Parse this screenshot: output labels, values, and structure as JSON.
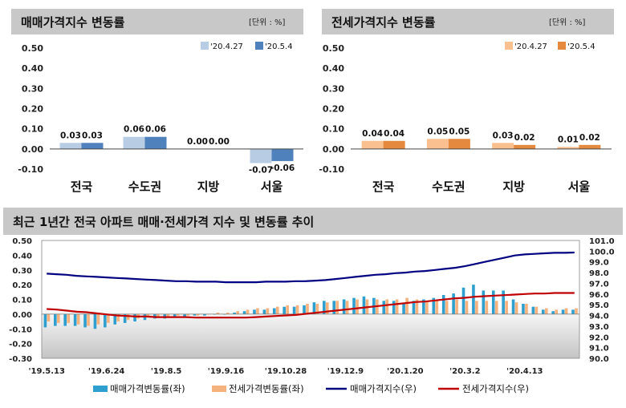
{
  "colors": {
    "header_bg": "#c8c8c8",
    "sale_prev": "#b8cce4",
    "sale_curr": "#4f81bd",
    "rent_prev": "#fac090",
    "rent_curr": "#e5893e",
    "bottom_sale_bar": "#2e9fcf",
    "bottom_rent_bar": "#f5b27e",
    "sale_index_line": "#000080",
    "rent_index_line": "#c00000"
  },
  "chart_data": [
    {
      "type": "bar",
      "title": "매매가격지수 변동률",
      "unit": "[단위 : %]",
      "categories": [
        "전국",
        "수도권",
        "지방",
        "서울"
      ],
      "series": [
        {
          "name": "'20.4.27",
          "values": [
            0.03,
            0.06,
            0.0,
            -0.07
          ]
        },
        {
          "name": "'20.5.4",
          "values": [
            0.03,
            0.06,
            0.0,
            -0.06
          ]
        }
      ],
      "data_labels": [
        [
          "0.03",
          "0.06",
          "0.00",
          "-0.07"
        ],
        [
          "0.03",
          "0.06",
          "0.00",
          "-0.06"
        ]
      ],
      "ylim": [
        -0.1,
        0.5
      ],
      "yticks": [
        "0.50",
        "0.40",
        "0.30",
        "0.20",
        "0.10",
        "0.00",
        "-0.10"
      ],
      "legend": "top-right"
    },
    {
      "type": "bar",
      "title": "전세가격지수 변동률",
      "unit": "[단위 : %]",
      "categories": [
        "전국",
        "수도권",
        "지방",
        "서울"
      ],
      "series": [
        {
          "name": "'20.4.27",
          "values": [
            0.04,
            0.05,
            0.03,
            0.01
          ]
        },
        {
          "name": "'20.5.4",
          "values": [
            0.04,
            0.05,
            0.02,
            0.02
          ]
        }
      ],
      "data_labels": [
        [
          "0.04",
          "0.05",
          "0.03",
          "0.01"
        ],
        [
          "0.04",
          "0.05",
          "0.02",
          "0.02"
        ]
      ],
      "ylim": [
        -0.1,
        0.5
      ],
      "yticks": [
        "0.50",
        "0.40",
        "0.30",
        "0.20",
        "0.10",
        "0.00",
        "-0.10"
      ],
      "legend": "top-right"
    },
    {
      "type": "bar",
      "title": "최근 1년간 전국 아파트 매매·전세가격 지수 및 변동률 추이",
      "x_tick_labels": [
        "'19.5.13",
        "'19.6.24",
        "'19.8.5",
        "'19.9.16",
        "'19.10.28",
        "'19.12.9",
        "'20.1.20",
        "'20.3.2",
        "'20.4.13"
      ],
      "ylim_left": [
        -0.3,
        0.5
      ],
      "yticks_left": [
        "0.50",
        "0.40",
        "0.30",
        "0.20",
        "0.10",
        "0.00",
        "-0.10",
        "-0.20",
        "-0.30"
      ],
      "ylim_right": [
        90.0,
        101.0
      ],
      "yticks_right": [
        "101.0",
        "100.0",
        "99.0",
        "98.0",
        "97.0",
        "96.0",
        "95.0",
        "94.0",
        "93.0",
        "92.0",
        "91.0",
        "90.0"
      ],
      "legend": "bottom",
      "series": [
        {
          "name": "매매가격변동률(좌)",
          "type": "bar",
          "axis": "left",
          "values": [
            -0.09,
            -0.08,
            -0.08,
            -0.08,
            -0.09,
            -0.1,
            -0.09,
            -0.07,
            -0.06,
            -0.05,
            -0.04,
            -0.03,
            -0.03,
            -0.02,
            -0.02,
            -0.01,
            -0.01,
            0.0,
            0.0,
            0.01,
            0.02,
            0.03,
            0.03,
            0.04,
            0.05,
            0.05,
            0.06,
            0.08,
            0.09,
            0.09,
            0.1,
            0.11,
            0.12,
            0.11,
            0.09,
            0.09,
            0.07,
            0.09,
            0.1,
            0.11,
            0.13,
            0.14,
            0.18,
            0.2,
            0.16,
            0.16,
            0.16,
            0.1,
            0.07,
            0.05,
            0.03,
            0.02,
            0.03,
            0.03
          ]
        },
        {
          "name": "전세가격변동률(좌)",
          "type": "bar",
          "axis": "left",
          "values": [
            -0.05,
            -0.06,
            -0.06,
            -0.07,
            -0.08,
            -0.07,
            -0.06,
            -0.05,
            -0.04,
            -0.03,
            -0.02,
            -0.02,
            -0.02,
            -0.01,
            -0.01,
            -0.01,
            0.0,
            0.01,
            0.01,
            0.02,
            0.03,
            0.04,
            0.04,
            0.05,
            0.06,
            0.06,
            0.07,
            0.07,
            0.08,
            0.09,
            0.09,
            0.1,
            0.1,
            0.1,
            0.1,
            0.1,
            0.11,
            0.1,
            0.09,
            0.09,
            0.09,
            0.1,
            0.09,
            0.09,
            0.09,
            0.09,
            0.09,
            0.08,
            0.07,
            0.05,
            0.04,
            0.03,
            0.04,
            0.04
          ]
        },
        {
          "name": "매매가격지수(우)",
          "type": "line",
          "axis": "right",
          "values": [
            97.9,
            97.85,
            97.8,
            97.7,
            97.65,
            97.6,
            97.55,
            97.5,
            97.45,
            97.4,
            97.35,
            97.3,
            97.25,
            97.2,
            97.2,
            97.15,
            97.15,
            97.15,
            97.1,
            97.1,
            97.1,
            97.1,
            97.15,
            97.15,
            97.15,
            97.2,
            97.2,
            97.25,
            97.3,
            97.4,
            97.5,
            97.6,
            97.7,
            97.8,
            97.85,
            97.95,
            98.0,
            98.1,
            98.15,
            98.25,
            98.35,
            98.45,
            98.6,
            98.8,
            99.0,
            99.2,
            99.4,
            99.6,
            99.7,
            99.75,
            99.8,
            99.85,
            99.85,
            99.88
          ]
        },
        {
          "name": "전세가격지수(우)",
          "type": "line",
          "axis": "right",
          "values": [
            94.6,
            94.55,
            94.45,
            94.35,
            94.3,
            94.2,
            94.1,
            94.0,
            93.95,
            93.9,
            93.9,
            93.85,
            93.85,
            93.85,
            93.85,
            93.8,
            93.8,
            93.8,
            93.8,
            93.8,
            93.8,
            93.85,
            93.9,
            93.95,
            94.0,
            94.05,
            94.15,
            94.25,
            94.35,
            94.45,
            94.55,
            94.65,
            94.75,
            94.85,
            94.95,
            95.05,
            95.15,
            95.25,
            95.3,
            95.4,
            95.5,
            95.6,
            95.65,
            95.75,
            95.8,
            95.85,
            95.9,
            95.95,
            96.0,
            96.05,
            96.05,
            96.1,
            96.1,
            96.1
          ]
        }
      ]
    }
  ]
}
